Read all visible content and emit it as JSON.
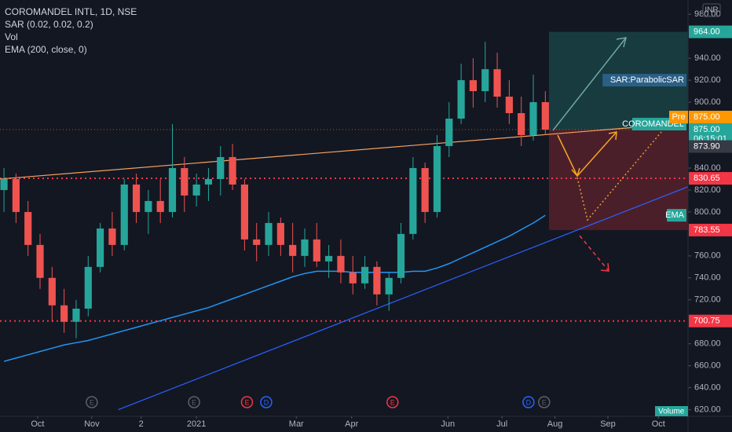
{
  "chart_data": {
    "type": "candlestick",
    "title": "COROMANDEL INTL, 1D, NSE",
    "indicators": [
      "SAR (0.02, 0.02, 0.2)",
      "Vol",
      "EMA (200, close, 0)"
    ],
    "currency": "INR",
    "up_color": "#26a69a",
    "down_color": "#ef5350",
    "ohlc": [
      [
        820,
        840,
        800,
        830
      ],
      [
        830,
        835,
        790,
        800
      ],
      [
        800,
        810,
        760,
        770
      ],
      [
        770,
        780,
        730,
        740
      ],
      [
        740,
        750,
        700,
        715
      ],
      [
        715,
        730,
        690,
        700
      ],
      [
        700,
        720,
        685,
        712
      ],
      [
        712,
        760,
        705,
        750
      ],
      [
        750,
        790,
        745,
        785
      ],
      [
        785,
        800,
        760,
        770
      ],
      [
        770,
        830,
        765,
        825
      ],
      [
        825,
        835,
        790,
        800
      ],
      [
        800,
        820,
        780,
        810
      ],
      [
        810,
        830,
        790,
        800
      ],
      [
        800,
        880,
        795,
        840
      ],
      [
        840,
        850,
        800,
        815
      ],
      [
        815,
        835,
        805,
        825
      ],
      [
        825,
        840,
        810,
        830
      ],
      [
        830,
        860,
        815,
        850
      ],
      [
        850,
        862,
        820,
        825
      ],
      [
        825,
        830,
        765,
        775
      ],
      [
        775,
        790,
        755,
        770
      ],
      [
        770,
        800,
        760,
        790
      ],
      [
        790,
        795,
        760,
        770
      ],
      [
        770,
        790,
        745,
        760
      ],
      [
        760,
        785,
        750,
        775
      ],
      [
        775,
        790,
        750,
        755
      ],
      [
        755,
        770,
        740,
        760
      ],
      [
        760,
        775,
        735,
        745
      ],
      [
        745,
        760,
        725,
        735
      ],
      [
        735,
        760,
        730,
        750
      ],
      [
        750,
        755,
        715,
        725
      ],
      [
        725,
        745,
        710,
        740
      ],
      [
        740,
        790,
        735,
        780
      ],
      [
        780,
        850,
        775,
        840
      ],
      [
        840,
        845,
        790,
        800
      ],
      [
        800,
        870,
        795,
        860
      ],
      [
        860,
        900,
        850,
        885
      ],
      [
        885,
        935,
        880,
        920
      ],
      [
        920,
        940,
        895,
        910
      ],
      [
        910,
        955,
        900,
        930
      ],
      [
        930,
        945,
        895,
        905
      ],
      [
        905,
        920,
        880,
        890
      ],
      [
        890,
        905,
        860,
        870
      ],
      [
        870,
        925,
        865,
        900
      ],
      [
        900,
        910,
        870,
        875
      ]
    ],
    "ema": {
      "name": "EMA",
      "color": "#2196f3",
      "values": [
        664,
        667,
        670,
        673,
        676,
        679,
        681,
        683,
        686,
        689,
        692,
        695,
        698,
        701,
        704,
        707,
        710,
        713,
        717,
        721,
        725,
        729,
        733,
        737,
        741,
        744,
        746,
        746,
        746,
        745,
        745,
        745,
        745,
        745,
        746,
        746,
        749,
        753,
        758,
        763,
        768,
        773,
        778,
        784,
        790,
        797
      ]
    },
    "lines": [
      {
        "color": "#f5a25d",
        "points": [
          [
            -0.33,
            830
          ],
          [
            56.86,
            881
          ]
        ]
      },
      {
        "color": "#2962ff",
        "points": [
          [
            9.5,
            620
          ],
          [
            56.86,
            823
          ]
        ]
      }
    ],
    "position": {
      "x_start": 45.3,
      "x_end": 56.86,
      "entry": 875,
      "target": 964,
      "stop": 783.55
    },
    "price_labels": [
      {
        "value": 964,
        "label": "964.00",
        "color": "#26a69a"
      },
      {
        "value": 875,
        "label": "875.00",
        "color": "#26a69a",
        "countdown": "06:15:01"
      },
      {
        "value": 873.9,
        "label": "873.90",
        "color": "#363a45"
      },
      {
        "value": 830.65,
        "label": "830.65",
        "color": "#f23645",
        "line": true
      },
      {
        "value": 783.55,
        "label": "783.55",
        "color": "#f23645"
      },
      {
        "value": 700.75,
        "label": "700.75",
        "color": "#f23645",
        "line": true
      }
    ],
    "pre": {
      "name": "Pre",
      "value": 875,
      "label": "875.00",
      "color": "#ff9800"
    },
    "tags": [
      {
        "text": "SAR:ParabolicSAR",
        "value": 920,
        "color": "#2a5f86"
      },
      {
        "text": "COROMANDEL",
        "value": 880,
        "color": "#26a69a"
      },
      {
        "text": "EMA",
        "value": 797,
        "color": "#26a69a"
      }
    ],
    "volume_label": "Volume",
    "events": [
      {
        "label": "E",
        "x": 7.3,
        "color": "#5d606b"
      },
      {
        "label": "E",
        "x": 15.8,
        "color": "#5d606b"
      },
      {
        "label": "E",
        "x": 20.2,
        "color": "#f23645"
      },
      {
        "label": "D",
        "x": 21.8,
        "color": "#2962ff"
      },
      {
        "label": "E",
        "x": 32.3,
        "color": "#f23645"
      },
      {
        "label": "D",
        "x": 43.6,
        "color": "#2962ff"
      },
      {
        "label": "E",
        "x": 44.9,
        "color": "#5d606b"
      }
    ],
    "xlim": [
      -0.33,
      56.86
    ],
    "xticks": [
      {
        "value": 2.8,
        "label": "Oct"
      },
      {
        "value": 7.3,
        "label": "Nov"
      },
      {
        "value": 11.4,
        "label": "2"
      },
      {
        "value": 16,
        "label": "2021"
      },
      {
        "value": 24.3,
        "label": "Mar"
      },
      {
        "value": 28.9,
        "label": "Apr"
      },
      {
        "value": 36.9,
        "label": "Jun"
      },
      {
        "value": 41.4,
        "label": "Jul"
      },
      {
        "value": 45.8,
        "label": "Aug"
      },
      {
        "value": 50.2,
        "label": "Sep"
      },
      {
        "value": 54.4,
        "label": "Oct"
      }
    ],
    "ylim": [
      614,
      993
    ],
    "yticks": [
      {
        "value": 980,
        "label": "980.00"
      },
      {
        "value": 940,
        "label": "940.00"
      },
      {
        "value": 920,
        "label": "920.00"
      },
      {
        "value": 900,
        "label": "900.00"
      },
      {
        "value": 840,
        "label": "840.00"
      },
      {
        "value": 820,
        "label": "820.00"
      },
      {
        "value": 800,
        "label": "800.00"
      },
      {
        "value": 760,
        "label": "760.00"
      },
      {
        "value": 740,
        "label": "740.00"
      },
      {
        "value": 720,
        "label": "720.00"
      },
      {
        "value": 680,
        "label": "680.00"
      },
      {
        "value": 660,
        "label": "660.00"
      },
      {
        "value": 640,
        "label": "640.00"
      },
      {
        "value": 620,
        "label": "620.00"
      }
    ],
    "grid": false
  }
}
